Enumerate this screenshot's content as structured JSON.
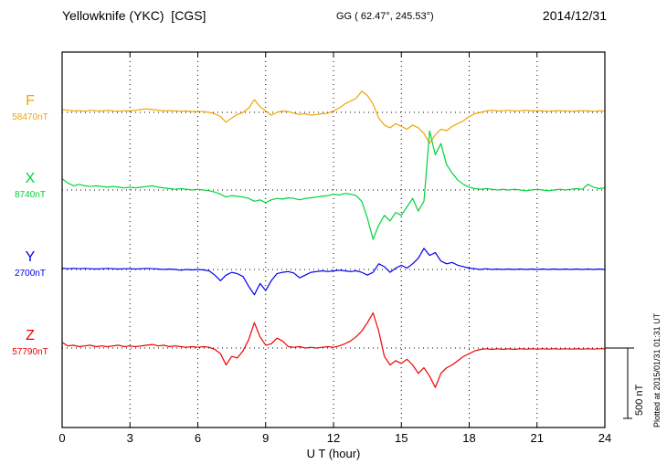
{
  "header": {
    "station": "Yellowknife (YKC)  [CGS]",
    "coords": "GG ( 62.47°, 245.53°)",
    "date": "2014/12/31"
  },
  "axis": {
    "label": "U T (hour)",
    "ticks": [
      0,
      3,
      6,
      9,
      12,
      15,
      18,
      21,
      24
    ],
    "range": [
      0,
      24
    ]
  },
  "scale_bar": {
    "label": "500 nT",
    "value_nT": 500
  },
  "footnote": "Plotted at 2015/01/31 01:31 UT",
  "chart_data": {
    "type": "line",
    "title": "Yellowknife (YKC) magnetogram, CGS, 2014/12/31",
    "xlabel": "U T (hour)",
    "x_range_hours": [
      0,
      24
    ],
    "x_step_hours": 0.25,
    "grid": "dotted vertical lines every 3 hours, dotted horizontal baseline per trace",
    "legend_position": "left margin labels",
    "series": [
      {
        "name": "F",
        "label": "F",
        "baseline_label": "58470nT",
        "baseline_nT": 58470,
        "color": "#f2a400",
        "offsets_nT": [
          20,
          15,
          10,
          12,
          8,
          15,
          12,
          10,
          14,
          10,
          8,
          12,
          10,
          15,
          20,
          25,
          20,
          15,
          10,
          12,
          10,
          8,
          10,
          6,
          8,
          5,
          0,
          -10,
          -30,
          -70,
          -40,
          -15,
          0,
          30,
          90,
          40,
          10,
          -20,
          0,
          10,
          5,
          -5,
          -15,
          -10,
          -20,
          -15,
          -10,
          -5,
          10,
          30,
          60,
          80,
          100,
          150,
          120,
          60,
          -40,
          -90,
          -110,
          -80,
          -100,
          -120,
          -90,
          -110,
          -150,
          -220,
          -160,
          -120,
          -130,
          -100,
          -80,
          -60,
          -30,
          -10,
          0,
          10,
          15,
          10,
          12,
          15,
          10,
          12,
          15,
          10,
          12,
          10,
          8,
          10,
          12,
          10,
          8,
          10,
          12,
          10,
          8,
          10,
          10
        ]
      },
      {
        "name": "X",
        "label": "X",
        "baseline_label": "8740nT",
        "baseline_nT": 8740,
        "color": "#00d33c",
        "offsets_nT": [
          80,
          50,
          30,
          40,
          30,
          25,
          30,
          25,
          20,
          25,
          20,
          15,
          20,
          15,
          20,
          25,
          30,
          20,
          15,
          10,
          5,
          10,
          5,
          0,
          5,
          0,
          -5,
          -15,
          -30,
          -50,
          -40,
          -45,
          -50,
          -60,
          -80,
          -70,
          -90,
          -70,
          -60,
          -65,
          -55,
          -60,
          -70,
          -60,
          -55,
          -50,
          -45,
          -40,
          -30,
          -35,
          -25,
          -30,
          -40,
          -80,
          -200,
          -350,
          -250,
          -180,
          -220,
          -160,
          -180,
          -120,
          -60,
          -150,
          -80,
          420,
          250,
          330,
          180,
          120,
          70,
          40,
          20,
          10,
          5,
          10,
          5,
          0,
          5,
          0,
          5,
          0,
          -5,
          0,
          5,
          0,
          -5,
          0,
          5,
          0,
          5,
          10,
          5,
          40,
          20,
          10,
          15
        ]
      },
      {
        "name": "Y",
        "label": "Y",
        "baseline_label": "2700nT",
        "baseline_nT": 2700,
        "color": "#0000ee",
        "offsets_nT": [
          10,
          5,
          8,
          5,
          8,
          5,
          3,
          5,
          8,
          5,
          3,
          5,
          5,
          3,
          5,
          8,
          5,
          3,
          0,
          3,
          0,
          -5,
          0,
          -3,
          0,
          -3,
          -10,
          -40,
          -80,
          -40,
          -20,
          -30,
          -50,
          -120,
          -180,
          -100,
          -150,
          -80,
          -30,
          -20,
          -15,
          -25,
          -60,
          -40,
          -20,
          -15,
          -10,
          -15,
          -10,
          -5,
          -10,
          -15,
          -10,
          -20,
          -40,
          -20,
          40,
          20,
          -20,
          10,
          30,
          10,
          40,
          80,
          150,
          100,
          120,
          60,
          40,
          50,
          30,
          20,
          10,
          5,
          0,
          5,
          0,
          3,
          0,
          3,
          0,
          3,
          0,
          3,
          0,
          3,
          0,
          3,
          0,
          3,
          0,
          3,
          0,
          3,
          0,
          3,
          0
        ]
      },
      {
        "name": "Z",
        "label": "Z",
        "baseline_label": "57790nT",
        "baseline_nT": 57790,
        "color": "#ee0000",
        "offsets_nT": [
          40,
          15,
          20,
          10,
          15,
          20,
          10,
          15,
          10,
          15,
          20,
          10,
          15,
          10,
          15,
          20,
          25,
          15,
          20,
          10,
          15,
          10,
          5,
          10,
          5,
          10,
          5,
          -10,
          -40,
          -120,
          -60,
          -70,
          -20,
          60,
          180,
          80,
          20,
          30,
          70,
          50,
          10,
          5,
          10,
          0,
          5,
          0,
          5,
          10,
          5,
          15,
          30,
          50,
          80,
          120,
          180,
          250,
          120,
          -60,
          -120,
          -90,
          -110,
          -80,
          -120,
          -180,
          -140,
          -200,
          -280,
          -180,
          -140,
          -120,
          -90,
          -60,
          -40,
          -20,
          -10,
          -5,
          -10,
          -5,
          -10,
          -5,
          -10,
          -5,
          -8,
          -5,
          -8,
          -5,
          -8,
          -5,
          -8,
          -5,
          -8,
          -5,
          -8,
          -5,
          -8,
          -5,
          -5
        ]
      }
    ]
  }
}
